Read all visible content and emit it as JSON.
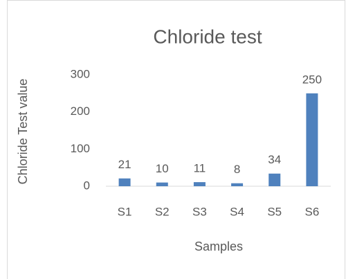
{
  "chart_data": {
    "type": "bar",
    "title": "Chloride test",
    "x_label": "Samples",
    "y_label": "Chloride Test value",
    "categories": [
      "S1",
      "S2",
      "S3",
      "S4",
      "S5",
      "S6"
    ],
    "values": [
      21,
      10,
      11,
      8,
      34,
      250
    ],
    "color": "#4f81bd",
    "ylim": [
      0,
      300
    ],
    "yticks": [
      0,
      100,
      200,
      300
    ],
    "grid": false
  }
}
